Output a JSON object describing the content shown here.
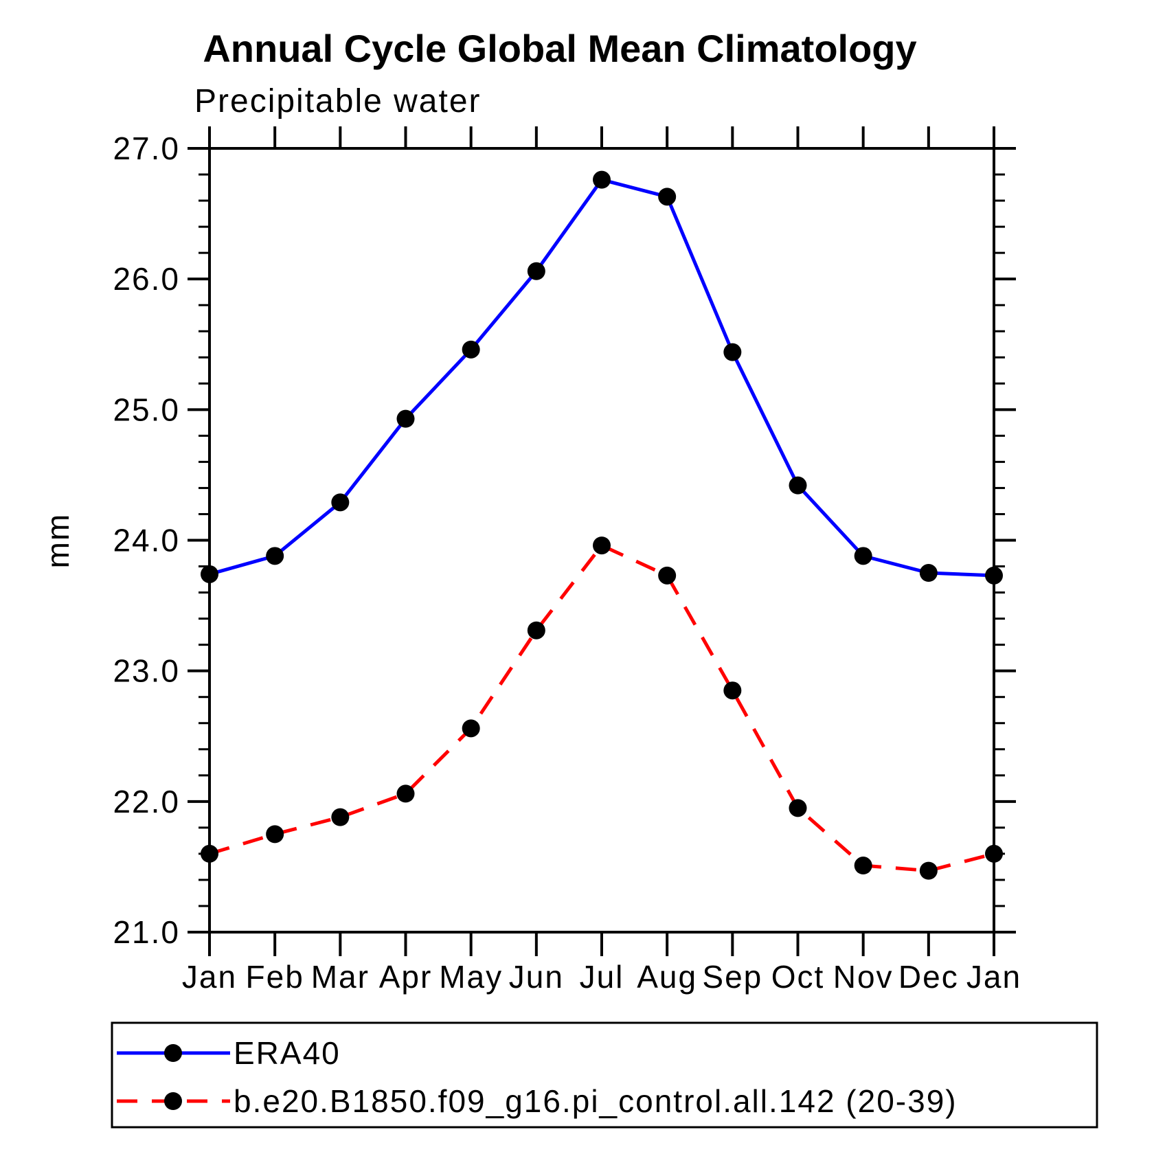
{
  "chart_data": {
    "type": "line",
    "title": "Annual Cycle Global Mean Climatology",
    "subtitle": "Precipitable water",
    "xlabel": "",
    "ylabel": "mm",
    "ylim": [
      21.0,
      27.0
    ],
    "ytick_major_step": 1.0,
    "ytick_minor_step": 0.2,
    "ytick_labels": [
      "21.0",
      "22.0",
      "23.0",
      "24.0",
      "25.0",
      "26.0",
      "27.0"
    ],
    "categories": [
      "Jan",
      "Feb",
      "Mar",
      "Apr",
      "May",
      "Jun",
      "Jul",
      "Aug",
      "Sep",
      "Oct",
      "Nov",
      "Dec",
      "Jan"
    ],
    "grid": false,
    "legend_position": "bottom-left-box",
    "marker": {
      "shape": "circle",
      "color": "#000000"
    },
    "series": [
      {
        "name": "ERA40",
        "color": "#0000ff",
        "style": "solid",
        "values": [
          23.74,
          23.88,
          24.29,
          24.93,
          25.46,
          26.06,
          26.76,
          26.63,
          25.44,
          24.42,
          23.88,
          23.75,
          23.73
        ]
      },
      {
        "name": "b.e20.B1850.f09_g16.pi_control.all.142 (20-39)",
        "color": "#ff0000",
        "style": "dashed",
        "values": [
          21.6,
          21.75,
          21.88,
          22.06,
          22.56,
          23.31,
          23.96,
          23.73,
          22.85,
          21.95,
          21.51,
          21.47,
          21.6
        ]
      }
    ]
  }
}
